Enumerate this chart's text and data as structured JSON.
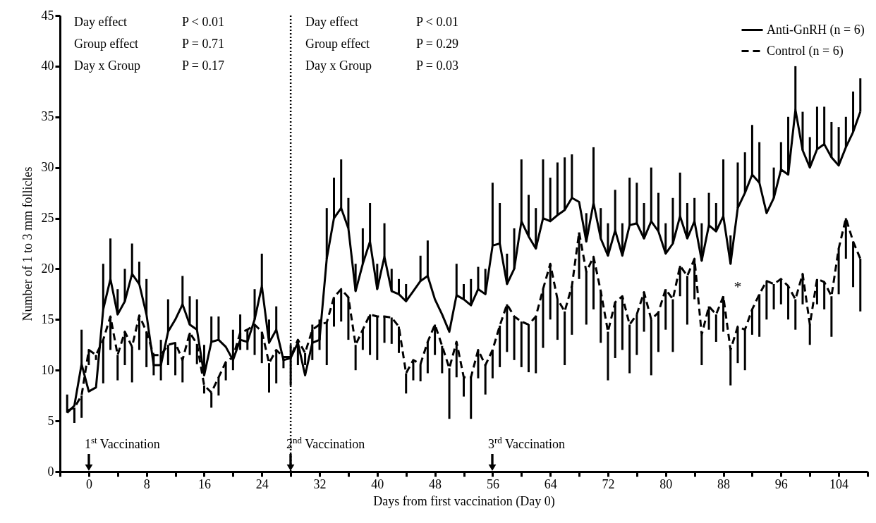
{
  "chart_data": {
    "type": "line",
    "xlabel": "Days from first vaccination (Day 0)",
    "ylabel": "Number of 1 to 3 mm follicles",
    "x": [
      -3,
      -2,
      -1,
      0,
      1,
      2,
      3,
      4,
      5,
      6,
      7,
      8,
      9,
      10,
      11,
      12,
      13,
      14,
      15,
      16,
      17,
      18,
      19,
      20,
      21,
      22,
      23,
      24,
      25,
      26,
      27,
      28,
      29,
      30,
      31,
      32,
      33,
      34,
      35,
      36,
      37,
      38,
      39,
      40,
      41,
      42,
      43,
      44,
      45,
      46,
      47,
      48,
      49,
      50,
      51,
      52,
      53,
      54,
      55,
      56,
      57,
      58,
      59,
      60,
      61,
      62,
      63,
      64,
      65,
      66,
      67,
      68,
      69,
      70,
      71,
      72,
      73,
      74,
      75,
      76,
      77,
      78,
      79,
      80,
      81,
      82,
      83,
      84,
      85,
      86,
      87,
      88,
      89,
      90,
      91,
      92,
      93,
      94,
      95,
      96,
      97,
      98,
      99,
      100,
      101,
      102,
      103,
      104,
      105,
      106,
      107
    ],
    "series": [
      {
        "name": "Anti-GnRH (n = 6)",
        "color": "#000000",
        "line_style": "solid",
        "values": [
          5.8,
          6.5,
          10.6,
          7.9,
          8.3,
          16,
          19,
          15.5,
          16.8,
          19.5,
          18.5,
          15.5,
          10.5,
          10.5,
          13.8,
          15,
          16.5,
          14.5,
          14,
          9.5,
          12.8,
          13,
          12.3,
          11,
          13,
          12.8,
          15,
          18.3,
          12.7,
          14,
          11,
          11.2,
          12.7,
          9.5,
          12.7,
          13,
          21,
          25,
          26,
          24,
          17.8,
          20.5,
          22.7,
          18,
          21.2,
          17.8,
          17.5,
          16.8,
          17.8,
          18.8,
          19.3,
          17,
          15.5,
          13.8,
          17.4,
          17,
          16.4,
          18,
          17.5,
          22.3,
          22.5,
          18.5,
          20,
          24.7,
          23.2,
          22,
          25,
          24.7,
          25.3,
          25.8,
          27,
          26.6,
          22.7,
          26.5,
          23,
          21.3,
          23.8,
          21.3,
          24.3,
          24.5,
          23,
          24.7,
          23.7,
          21.5,
          22.5,
          25.2,
          23,
          24.7,
          20.8,
          24.3,
          23.7,
          25.2,
          20.5,
          26,
          27.5,
          29.3,
          28.5,
          25.5,
          27,
          29.8,
          29.3,
          35.7,
          31.7,
          30,
          31.8,
          32.3,
          31,
          30.2,
          32,
          33.5,
          35.5
        ],
        "errors": [
          [
            5.8,
            7.6
          ],
          null,
          [
            10.6,
            14
          ],
          null,
          null,
          [
            16,
            20.5
          ],
          [
            19,
            23
          ],
          [
            15.5,
            18
          ],
          [
            16.8,
            20
          ],
          [
            19.5,
            22.5
          ],
          [
            18.5,
            20.7
          ],
          [
            15.5,
            19
          ],
          null,
          [
            10.5,
            13
          ],
          [
            13.8,
            17
          ],
          null,
          [
            16.5,
            19.3
          ],
          [
            14.5,
            17.3
          ],
          [
            14,
            17
          ],
          [
            9.5,
            12.5
          ],
          [
            12.8,
            15.3
          ],
          [
            13,
            15.3
          ],
          null,
          [
            11,
            14
          ],
          [
            13,
            15.5
          ],
          null,
          [
            15,
            18
          ],
          [
            18.3,
            21.5
          ],
          [
            12.7,
            15
          ],
          [
            14,
            16.3
          ],
          null,
          [
            11.2,
            12.5
          ],
          null,
          null,
          [
            12.7,
            14.5
          ],
          [
            13,
            15
          ],
          [
            21,
            26
          ],
          [
            25,
            29
          ],
          [
            26,
            30.8
          ],
          [
            24,
            27
          ],
          [
            17.8,
            20.5
          ],
          [
            20.5,
            24
          ],
          [
            22.7,
            26.5
          ],
          [
            18,
            20.5
          ],
          [
            21.2,
            24.5
          ],
          [
            17.8,
            20
          ],
          [
            17.5,
            19
          ],
          [
            16.8,
            18.5
          ],
          null,
          [
            18.8,
            21.3
          ],
          [
            19.3,
            22.8
          ],
          null,
          null,
          null,
          [
            17.4,
            20.5
          ],
          [
            17,
            18.5
          ],
          [
            16.4,
            19
          ],
          [
            18,
            20.2
          ],
          [
            17.5,
            20
          ],
          [
            22.3,
            28.5
          ],
          [
            22.5,
            26.5
          ],
          [
            18.5,
            21.5
          ],
          [
            20,
            24
          ],
          [
            24.7,
            30.8
          ],
          [
            23.2,
            27.3
          ],
          [
            22,
            26
          ],
          [
            25,
            30.8
          ],
          [
            24.7,
            29
          ],
          [
            25.3,
            30.5
          ],
          [
            25.8,
            31
          ],
          [
            27,
            31.3
          ],
          null,
          [
            22.7,
            25.5
          ],
          [
            26.5,
            32
          ],
          [
            23,
            26
          ],
          [
            21.3,
            24.5
          ],
          [
            23.8,
            27.8
          ],
          [
            21.3,
            24.5
          ],
          [
            24.3,
            29
          ],
          [
            24.5,
            28.5
          ],
          [
            23,
            26.5
          ],
          [
            24.7,
            30
          ],
          [
            23.7,
            27.5
          ],
          [
            21.5,
            24.5
          ],
          [
            22.5,
            27
          ],
          [
            25.2,
            29.5
          ],
          [
            23,
            26.5
          ],
          [
            24.7,
            27
          ],
          [
            20.8,
            24.5
          ],
          [
            24.3,
            27.5
          ],
          [
            23.7,
            26.5
          ],
          [
            25.2,
            30.8
          ],
          [
            20.5,
            23.3
          ],
          [
            26,
            30.5
          ],
          [
            27.5,
            31.5
          ],
          [
            29.3,
            34.2
          ],
          [
            28.5,
            32.5
          ],
          null,
          [
            27,
            30
          ],
          [
            29.8,
            32.5
          ],
          [
            29.3,
            35
          ],
          [
            35.7,
            40
          ],
          [
            31.7,
            35.5
          ],
          [
            30,
            33
          ],
          [
            31.8,
            36
          ],
          [
            32.3,
            36
          ],
          [
            31,
            34.5
          ],
          [
            30.2,
            34
          ],
          [
            32,
            35
          ],
          [
            33.5,
            37.5
          ],
          [
            35.5,
            38.8
          ]
        ]
      },
      {
        "name": "Control (n = 6)",
        "color": "#000000",
        "line_style": "dashed",
        "values": [
          6,
          6.3,
          7.5,
          12,
          11.5,
          13,
          15.3,
          11.5,
          13.8,
          12.3,
          15.4,
          13.8,
          11.5,
          11.5,
          12.5,
          12.7,
          11,
          13.7,
          12.6,
          8.5,
          7.8,
          9.3,
          10.8,
          11.3,
          13.7,
          14,
          14.5,
          13.8,
          10.7,
          12,
          11.3,
          11.3,
          13,
          11.7,
          14,
          14.5,
          14.7,
          17.2,
          18,
          17.2,
          12.5,
          14,
          15.5,
          15.3,
          15.3,
          15.2,
          14.3,
          9.7,
          11,
          10.6,
          12.8,
          14.5,
          12.4,
          10.2,
          12.8,
          9.3,
          9.3,
          12,
          10.5,
          12,
          14.4,
          16.5,
          15.3,
          14.8,
          14.5,
          15.3,
          18,
          20.5,
          17,
          15.8,
          18.3,
          23.6,
          19.7,
          21.2,
          17.8,
          13.8,
          16.7,
          17.3,
          14.5,
          15.5,
          17.7,
          15,
          15.7,
          18,
          17,
          20.3,
          19.3,
          21,
          13.5,
          16.3,
          15.5,
          17.3,
          12,
          14.3,
          14,
          16,
          17.5,
          18.8,
          18.5,
          19,
          18.3,
          17,
          19.5,
          14.5,
          19,
          18.7,
          17.3,
          22,
          25,
          22.7,
          21
        ],
        "errors": [
          null,
          [
            4.8,
            6.3
          ],
          [
            5.3,
            7.5
          ],
          [
            10.5,
            12
          ],
          [
            11,
            11.5
          ],
          [
            8.7,
            13
          ],
          [
            12,
            15.3
          ],
          [
            9,
            11.5
          ],
          [
            10.5,
            13.8
          ],
          [
            8.8,
            12.3
          ],
          [
            12,
            15.4
          ],
          [
            10.3,
            13.8
          ],
          [
            9.5,
            11.5
          ],
          [
            9,
            11.5
          ],
          [
            10.5,
            12.5
          ],
          [
            9.5,
            12.7
          ],
          [
            8.8,
            11
          ],
          [
            11.5,
            13.7
          ],
          [
            10.6,
            12.6
          ],
          [
            7.7,
            8.5
          ],
          [
            6.3,
            7.8
          ],
          [
            7.5,
            9.3
          ],
          [
            9,
            10.8
          ],
          [
            10,
            11.3
          ],
          [
            12,
            13.7
          ],
          [
            12,
            14
          ],
          [
            11.5,
            14.5
          ],
          [
            10.7,
            13.8
          ],
          [
            7.8,
            10.7
          ],
          [
            8.7,
            12
          ],
          [
            10.2,
            11.3
          ],
          [
            8.5,
            11.3
          ],
          [
            10.5,
            13
          ],
          [
            10.5,
            11.7
          ],
          [
            11,
            14
          ],
          [
            12,
            14.5
          ],
          [
            10.5,
            14.7
          ],
          [
            14.3,
            17.2
          ],
          [
            14.8,
            18
          ],
          [
            13,
            17.2
          ],
          [
            10,
            12.5
          ],
          [
            12,
            14
          ],
          [
            11.5,
            15.5
          ],
          [
            11,
            15.3
          ],
          [
            12.7,
            15.3
          ],
          [
            12.6,
            15.2
          ],
          [
            11.7,
            14.3
          ],
          [
            7.7,
            9.7
          ],
          [
            9,
            11
          ],
          [
            8.9,
            10.6
          ],
          [
            9.7,
            12.8
          ],
          [
            11.5,
            14.5
          ],
          [
            9.7,
            12.4
          ],
          [
            5.2,
            10.2
          ],
          [
            9.3,
            12.8
          ],
          [
            7.4,
            9.3
          ],
          [
            5.2,
            9.3
          ],
          [
            9.2,
            12
          ],
          [
            7.6,
            10.5
          ],
          [
            9.2,
            12
          ],
          [
            10.3,
            14.4
          ],
          [
            11.8,
            16.5
          ],
          [
            11,
            15.3
          ],
          [
            10.3,
            14.8
          ],
          [
            9.8,
            14.5
          ],
          [
            9.7,
            15.3
          ],
          [
            12.2,
            18
          ],
          [
            15,
            20.5
          ],
          [
            13,
            17
          ],
          [
            10.5,
            15.8
          ],
          [
            13.5,
            18.3
          ],
          [
            19,
            23.6
          ],
          [
            14.5,
            19.7
          ],
          [
            16,
            21.2
          ],
          [
            12.7,
            17.8
          ],
          [
            9,
            13.8
          ],
          [
            11.2,
            16.7
          ],
          [
            12,
            17.3
          ],
          [
            9.7,
            14.5
          ],
          [
            11.5,
            15.5
          ],
          [
            13.8,
            17.7
          ],
          [
            9.5,
            15
          ],
          [
            11.8,
            15.7
          ],
          [
            14,
            18
          ],
          [
            11.8,
            17
          ],
          [
            17.3,
            20.3
          ],
          [
            14.5,
            19.3
          ],
          [
            17,
            21
          ],
          [
            10.5,
            13.5
          ],
          [
            14,
            16.3
          ],
          [
            12.8,
            15.5
          ],
          [
            13.8,
            17.3
          ],
          [
            8.5,
            12
          ],
          [
            10.7,
            14.3
          ],
          [
            10,
            14
          ],
          [
            13.5,
            16
          ],
          [
            13.3,
            17.5
          ],
          [
            15,
            18.8
          ],
          [
            16,
            18.5
          ],
          [
            16.5,
            19
          ],
          [
            15,
            18.3
          ],
          [
            14,
            17
          ],
          [
            16.5,
            19.5
          ],
          [
            12.5,
            14.5
          ],
          [
            16.5,
            19
          ],
          [
            16,
            18.7
          ],
          [
            13.3,
            17.3
          ],
          [
            17.5,
            22
          ],
          [
            21,
            25
          ],
          [
            18.2,
            22.7
          ],
          [
            15.8,
            21
          ]
        ]
      }
    ],
    "xlim": [
      -4,
      108
    ],
    "xticks": [
      {
        "value": -4,
        "label": null
      },
      0,
      {
        "value": 4,
        "label": null
      },
      8,
      {
        "value": 12,
        "label": null
      },
      16,
      {
        "value": 20,
        "label": null
      },
      24,
      {
        "value": 28,
        "label": null
      },
      32,
      {
        "value": 36,
        "label": null
      },
      40,
      {
        "value": 44,
        "label": null
      },
      48,
      {
        "value": 52,
        "label": null
      },
      56,
      {
        "value": 60,
        "label": null
      },
      64,
      {
        "value": 68,
        "label": null
      },
      72,
      {
        "value": 76,
        "label": null
      },
      80,
      {
        "value": 84,
        "label": null
      },
      88,
      {
        "value": 92,
        "label": null
      },
      96,
      {
        "value": 100,
        "label": null
      },
      104,
      {
        "value": 108,
        "label": null
      }
    ],
    "ylim": [
      0,
      45
    ],
    "yticks": [
      0,
      5,
      10,
      15,
      20,
      25,
      30,
      35,
      40,
      45
    ],
    "grid": false,
    "legend": "top right",
    "marker": "none",
    "ref_lines": [
      {
        "axis": "x",
        "value": 28,
        "line_style": "dotted"
      }
    ],
    "annotations": [
      "Day effect",
      "P < 0.01",
      "Group effect",
      "P = 0.71",
      "Day x Group",
      "P = 0.17",
      "Day effect",
      "P < 0.01",
      "Group effect",
      "P = 0.29",
      "Day x Group",
      "P = 0.03",
      "1$^{st}$ Vaccination",
      "2$^{nd}$ Vaccination",
      "3$^{rd}$ Vaccination",
      "*"
    ]
  }
}
